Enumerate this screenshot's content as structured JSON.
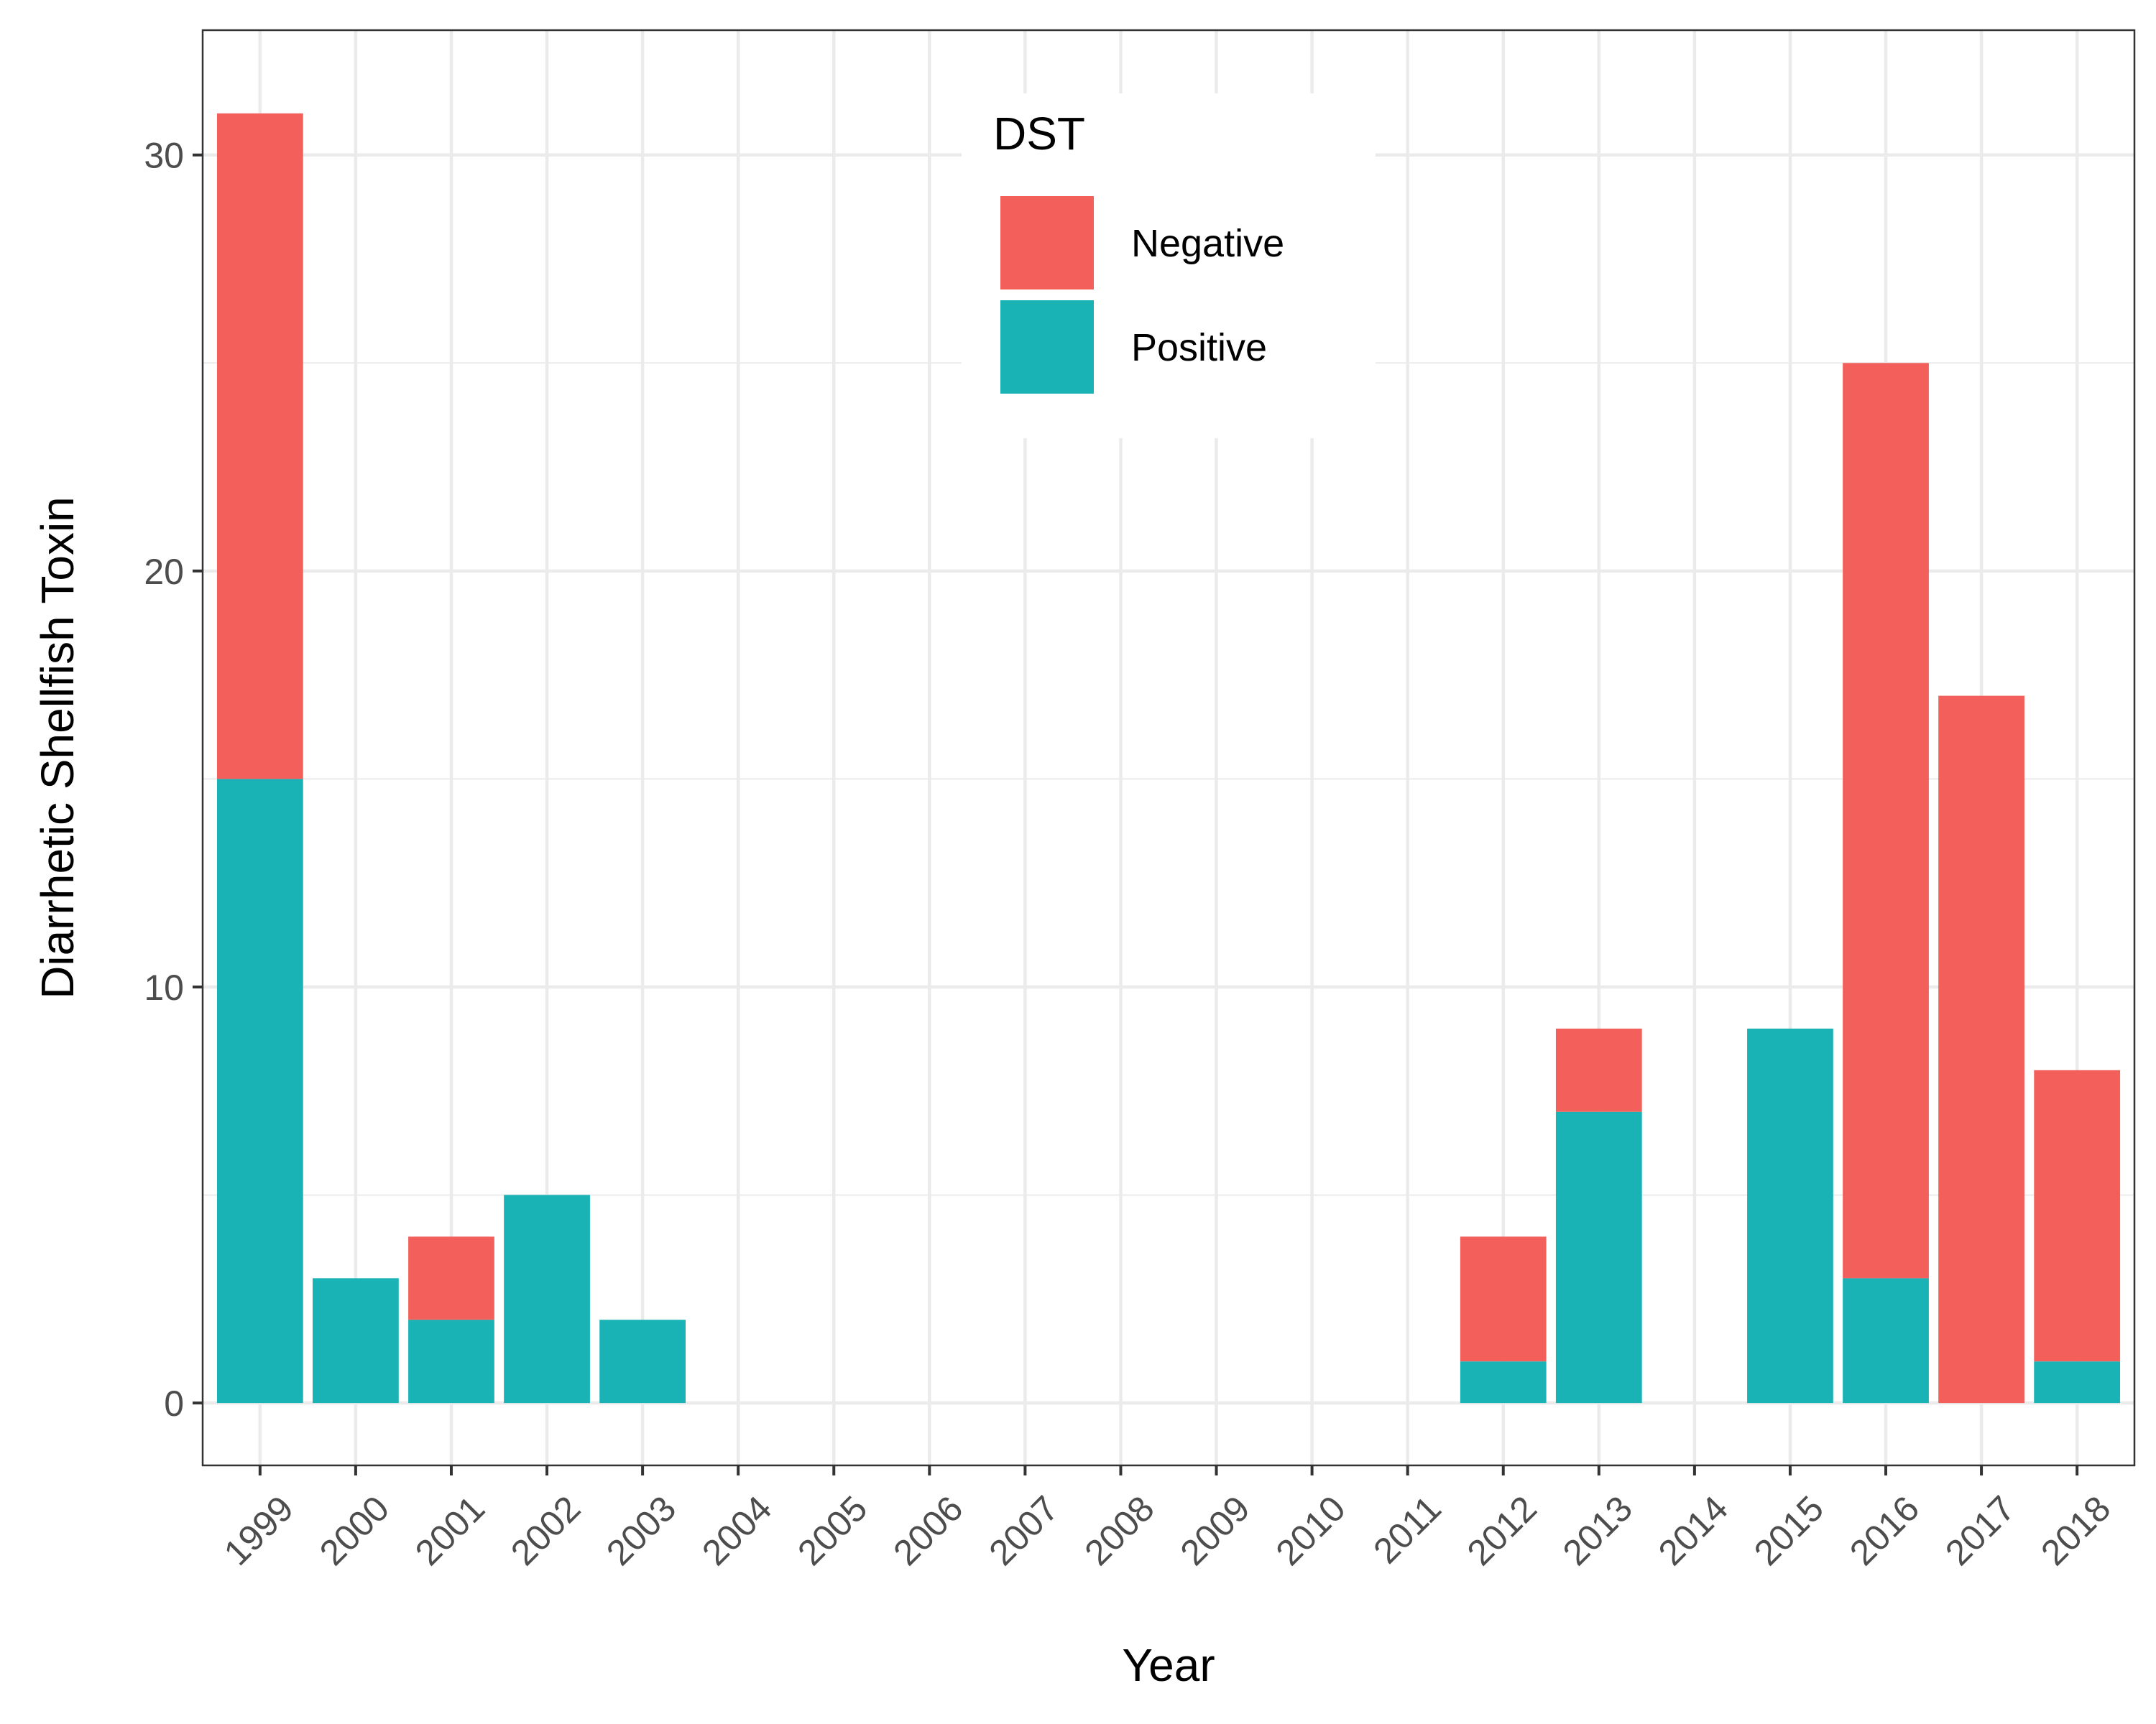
{
  "chart_data": {
    "type": "bar",
    "stacked": true,
    "title": "",
    "xlabel": "Year",
    "ylabel": "Diarrhetic Shellfish Toxin",
    "categories": [
      "1999",
      "2000",
      "2001",
      "2002",
      "2003",
      "2004",
      "2005",
      "2006",
      "2007",
      "2008",
      "2009",
      "2010",
      "2011",
      "2012",
      "2013",
      "2014",
      "2015",
      "2016",
      "2017",
      "2018"
    ],
    "series": [
      {
        "name": "Negative",
        "color": "#F35F5B",
        "values": [
          16,
          0,
          2,
          0,
          0,
          0,
          0,
          0,
          0,
          0,
          0,
          0,
          0,
          3,
          2,
          0,
          0,
          22,
          17,
          7
        ]
      },
      {
        "name": "Positive",
        "color": "#19B3B6",
        "values": [
          15,
          3,
          2,
          5,
          2,
          0,
          0,
          0,
          0,
          0,
          0,
          0,
          0,
          1,
          7,
          0,
          9,
          3,
          0,
          1
        ]
      }
    ],
    "ylim": [
      -1.5,
      33
    ],
    "yticks": [
      0,
      10,
      20,
      30
    ],
    "legend": {
      "title": "DST",
      "position": "top-center",
      "items": [
        "Negative",
        "Positive"
      ]
    },
    "grid": true,
    "panel_border": true
  }
}
